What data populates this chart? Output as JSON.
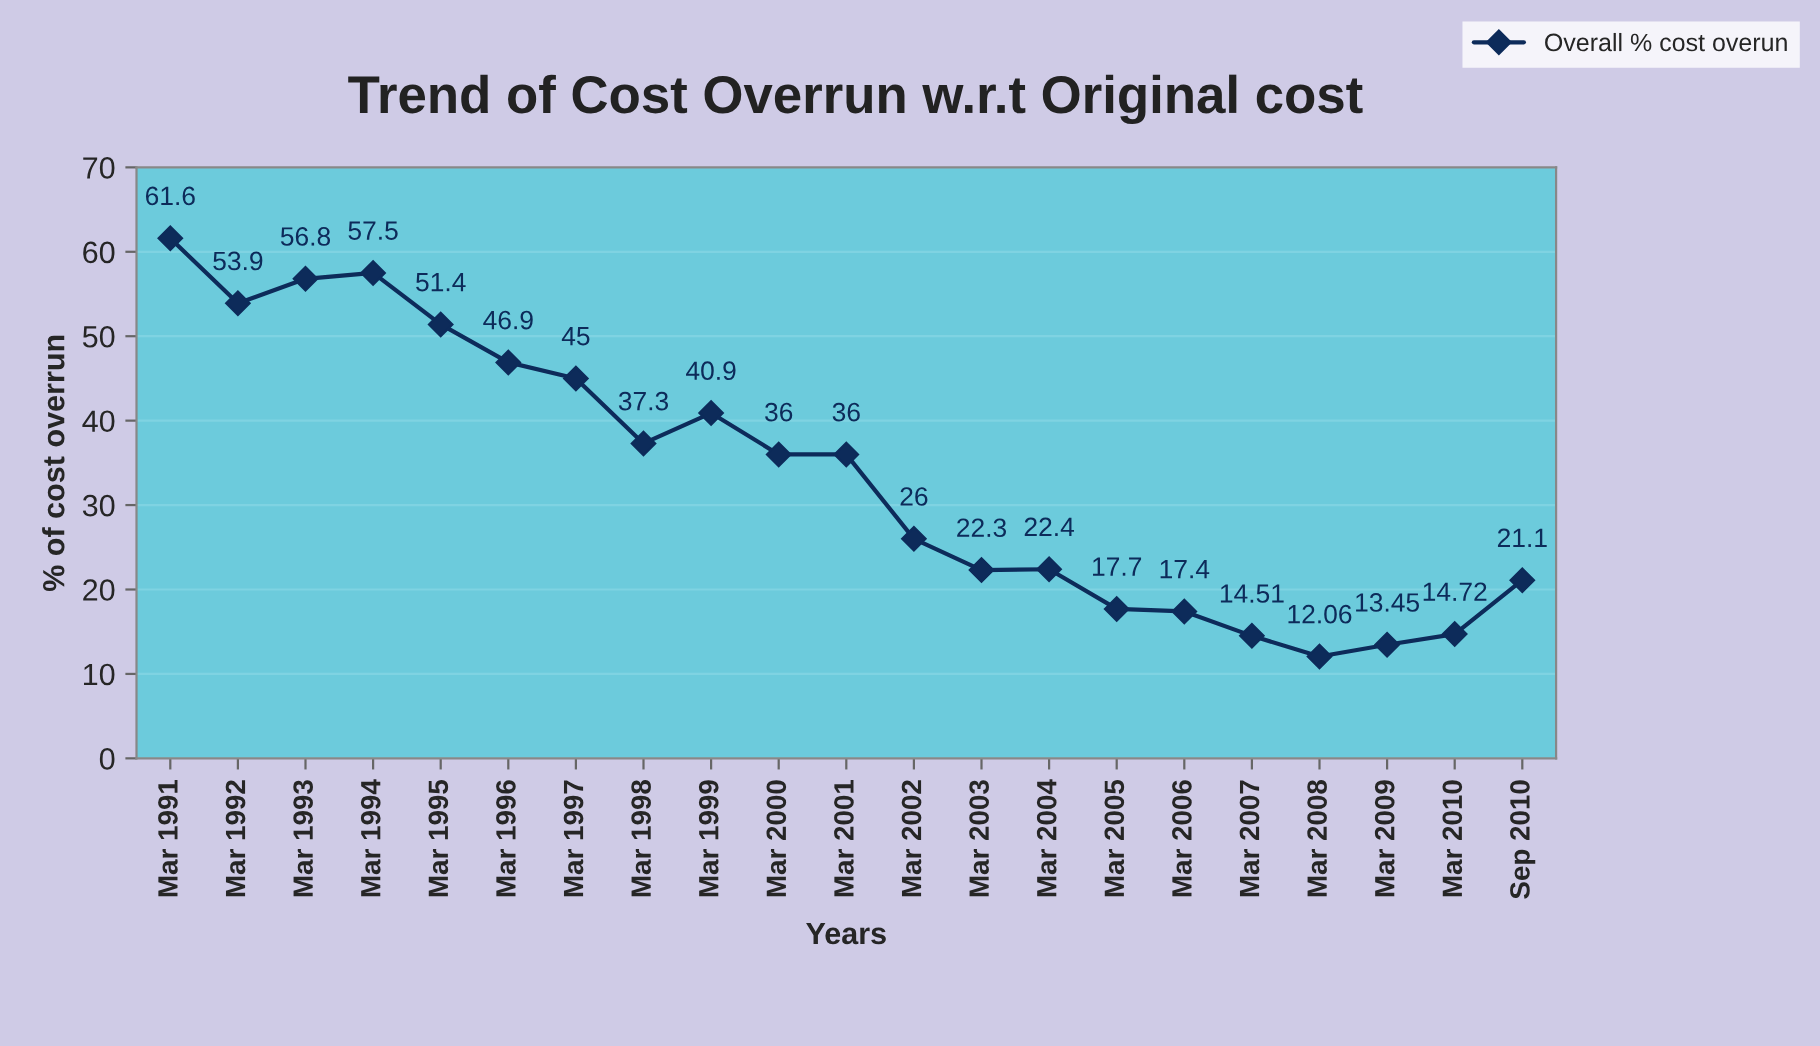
{
  "chart_data": {
    "type": "line",
    "title": "Trend of Cost Overrun w.r.t Original cost",
    "xlabel": "Years",
    "ylabel": "% of cost overrun",
    "categories": [
      "Mar 1991",
      "Mar 1992",
      "Mar 1993",
      "Mar 1994",
      "Mar 1995",
      "Mar 1996",
      "Mar 1997",
      "Mar 1998",
      "Mar 1999",
      "Mar 2000",
      "Mar 2001",
      "Mar 2002",
      "Mar 2003",
      "Mar 2004",
      "Mar 2005",
      "Mar 2006",
      "Mar 2007",
      "Mar 2008",
      "Mar 2009",
      "Mar 2010",
      "Sep 2010"
    ],
    "series": [
      {
        "name": "Overall % cost overun",
        "color": "#0d2b5a",
        "values": [
          61.6,
          53.9,
          56.8,
          57.5,
          51.4,
          46.9,
          45,
          37.3,
          40.9,
          36,
          36,
          26,
          22.3,
          22.4,
          17.7,
          17.4,
          14.51,
          12.06,
          13.45,
          14.72,
          21.1
        ]
      }
    ],
    "ylim": [
      0,
      70
    ],
    "yticks": [
      0,
      10,
      20,
      30,
      40,
      50,
      60,
      70
    ],
    "grid": "y",
    "legend": "top right",
    "marker": "diamond",
    "line_style": "solid",
    "data_labels": true
  }
}
